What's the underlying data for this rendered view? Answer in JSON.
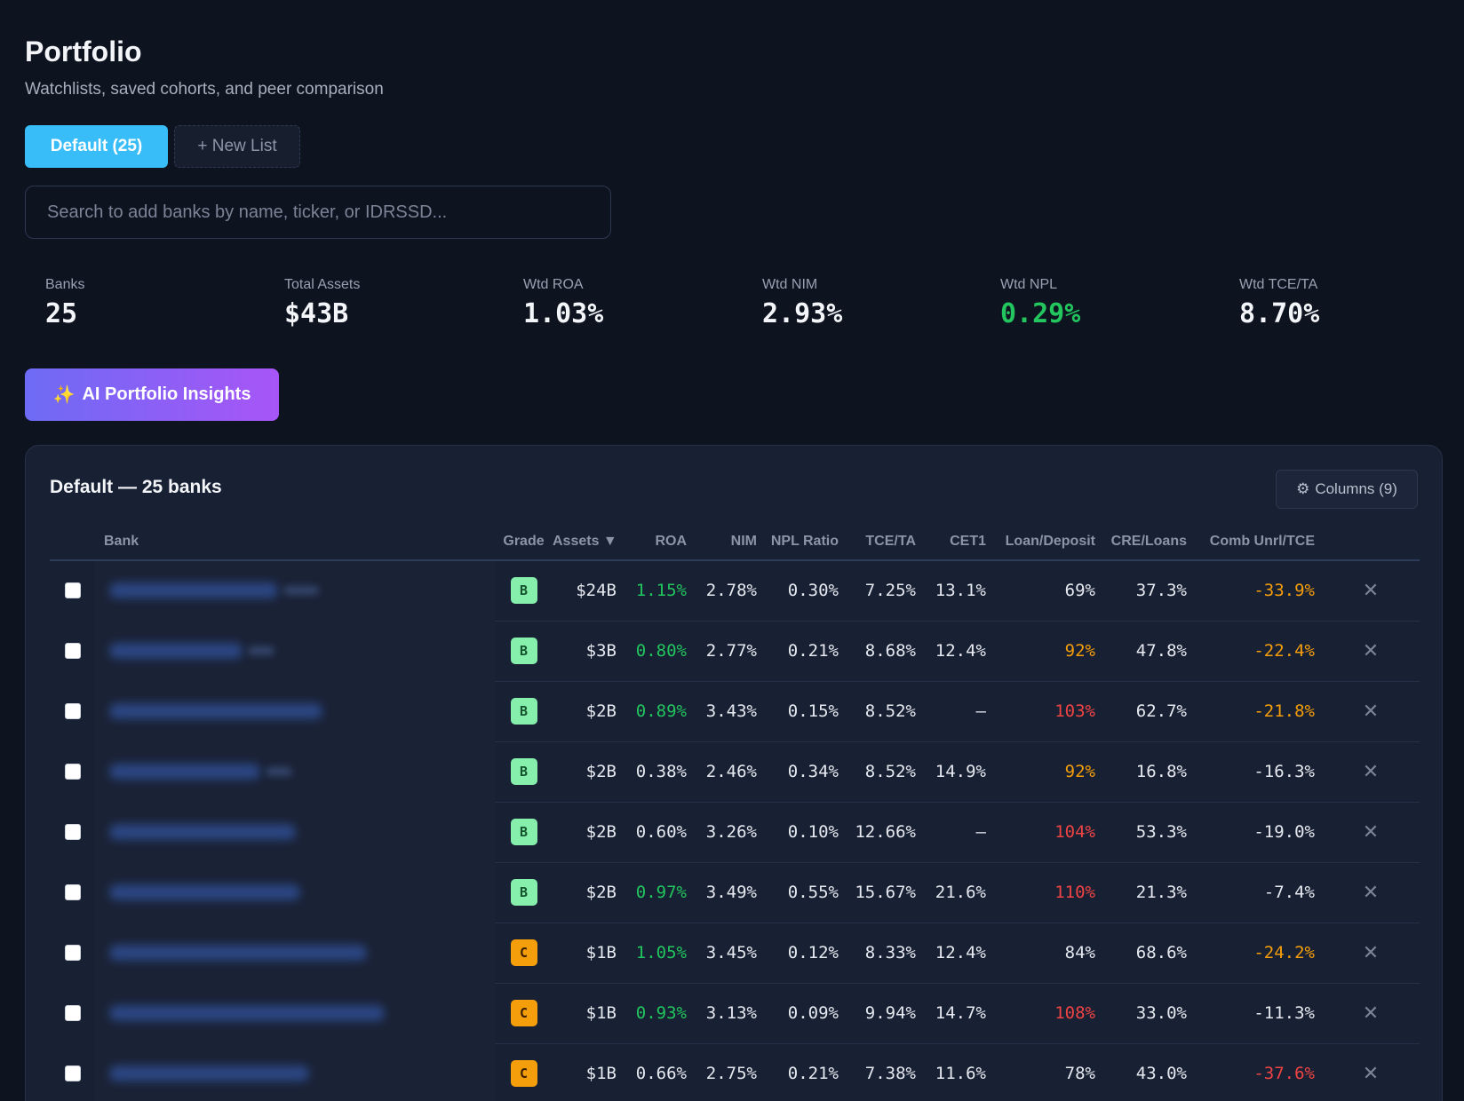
{
  "header": {
    "title": "Portfolio",
    "subtitle": "Watchlists, saved cohorts, and peer comparison"
  },
  "tabs": [
    {
      "label": "Default (25)",
      "active": true
    },
    {
      "label": "+ New List",
      "active": false
    }
  ],
  "search": {
    "placeholder": "Search to add banks by name, ticker, or IDRSSD..."
  },
  "stats": [
    {
      "label": "Banks",
      "value": "25",
      "tone": "default"
    },
    {
      "label": "Total Assets",
      "value": "$43B",
      "tone": "default"
    },
    {
      "label": "Wtd ROA",
      "value": "1.03%",
      "tone": "default"
    },
    {
      "label": "Wtd NIM",
      "value": "2.93%",
      "tone": "default"
    },
    {
      "label": "Wtd NPL",
      "value": "0.29%",
      "tone": "good"
    },
    {
      "label": "Wtd TCE/TA",
      "value": "8.70%",
      "tone": "default"
    }
  ],
  "ai_button": {
    "icon": "sparkles-icon",
    "label": "AI Portfolio Insights"
  },
  "panel": {
    "title": "Default — 25 banks",
    "columns_button": {
      "icon": "gear-icon",
      "label": "Columns (9)"
    }
  },
  "table": {
    "headers": {
      "bank": "Bank",
      "grade": "Grade",
      "assets": "Assets ▼",
      "roa": "ROA",
      "nim": "NIM",
      "npl": "NPL Ratio",
      "tce": "TCE/TA",
      "cet1": "CET1",
      "ld": "Loan/Deposit",
      "cre": "CRE/Loans",
      "unrl": "Comb Unrl/TCE"
    },
    "rows": [
      {
        "grade": "B",
        "assets": "$24B",
        "roa": "1.15%",
        "roa_tone": "green",
        "nim": "2.78%",
        "npl": "0.30%",
        "tce": "7.25%",
        "cet1": "13.1%",
        "ld": "69%",
        "ld_tone": "",
        "cre": "37.3%",
        "unrl": "-33.9%",
        "unrl_tone": "orange"
      },
      {
        "grade": "B",
        "assets": "$3B",
        "roa": "0.80%",
        "roa_tone": "green",
        "nim": "2.77%",
        "npl": "0.21%",
        "tce": "8.68%",
        "cet1": "12.4%",
        "ld": "92%",
        "ld_tone": "orange",
        "cre": "47.8%",
        "unrl": "-22.4%",
        "unrl_tone": "orange"
      },
      {
        "grade": "B",
        "assets": "$2B",
        "roa": "0.89%",
        "roa_tone": "green",
        "nim": "3.43%",
        "npl": "0.15%",
        "tce": "8.52%",
        "cet1": "—",
        "ld": "103%",
        "ld_tone": "red",
        "cre": "62.7%",
        "unrl": "-21.8%",
        "unrl_tone": "orange"
      },
      {
        "grade": "B",
        "assets": "$2B",
        "roa": "0.38%",
        "roa_tone": "",
        "nim": "2.46%",
        "npl": "0.34%",
        "tce": "8.52%",
        "cet1": "14.9%",
        "ld": "92%",
        "ld_tone": "orange",
        "cre": "16.8%",
        "unrl": "-16.3%",
        "unrl_tone": ""
      },
      {
        "grade": "B",
        "assets": "$2B",
        "roa": "0.60%",
        "roa_tone": "",
        "nim": "3.26%",
        "npl": "0.10%",
        "tce": "12.66%",
        "cet1": "—",
        "ld": "104%",
        "ld_tone": "red",
        "cre": "53.3%",
        "unrl": "-19.0%",
        "unrl_tone": ""
      },
      {
        "grade": "B",
        "assets": "$2B",
        "roa": "0.97%",
        "roa_tone": "green",
        "nim": "3.49%",
        "npl": "0.55%",
        "tce": "15.67%",
        "cet1": "21.6%",
        "ld": "110%",
        "ld_tone": "red",
        "cre": "21.3%",
        "unrl": "-7.4%",
        "unrl_tone": ""
      },
      {
        "grade": "C",
        "assets": "$1B",
        "roa": "1.05%",
        "roa_tone": "green",
        "nim": "3.45%",
        "npl": "0.12%",
        "tce": "8.33%",
        "cet1": "12.4%",
        "ld": "84%",
        "ld_tone": "",
        "cre": "68.6%",
        "unrl": "-24.2%",
        "unrl_tone": "orange"
      },
      {
        "grade": "C",
        "assets": "$1B",
        "roa": "0.93%",
        "roa_tone": "green",
        "nim": "3.13%",
        "npl": "0.09%",
        "tce": "9.94%",
        "cet1": "14.7%",
        "ld": "108%",
        "ld_tone": "red",
        "cre": "33.0%",
        "unrl": "-11.3%",
        "unrl_tone": ""
      },
      {
        "grade": "C",
        "assets": "$1B",
        "roa": "0.66%",
        "roa_tone": "",
        "nim": "2.75%",
        "npl": "0.21%",
        "tce": "7.38%",
        "cet1": "11.6%",
        "ld": "78%",
        "ld_tone": "",
        "cre": "43.0%",
        "unrl": "-37.6%",
        "unrl_tone": "red"
      }
    ]
  },
  "colors": {
    "accent": "#38bdf8",
    "positive": "#22c55e",
    "warning": "#f59e0b",
    "negative": "#ef4444",
    "grade_b": "#86efac",
    "grade_c": "#f59e0b"
  }
}
